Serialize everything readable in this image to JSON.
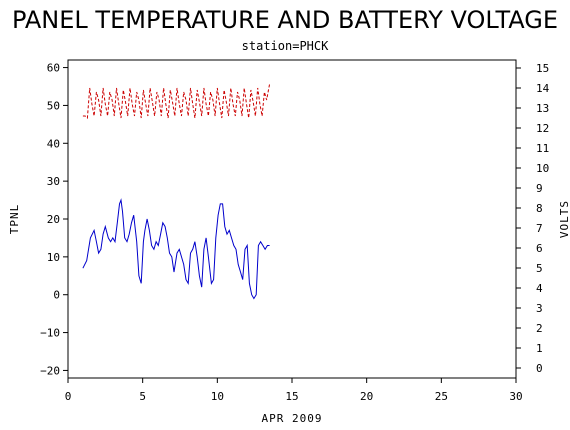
{
  "chart_data": {
    "type": "line",
    "title": "PANEL TEMPERATURE AND BATTERY VOLTAGE",
    "subtitle": "station=PHCK",
    "xlabel": "APR 2009",
    "ylabel_left": "TPNL",
    "ylabel_right": "VOLTS",
    "xlim": [
      0,
      30
    ],
    "ylim_left": [
      -22,
      62
    ],
    "ylim_right": [
      -0.5,
      15.4
    ],
    "x_ticks": [
      0,
      5,
      10,
      15,
      20,
      25,
      30
    ],
    "y_left_ticks": [
      -20,
      -10,
      0,
      10,
      20,
      30,
      40,
      50,
      60
    ],
    "y_right_ticks": [
      0,
      1,
      2,
      3,
      4,
      5,
      6,
      7,
      8,
      9,
      10,
      11,
      12,
      13,
      14,
      15
    ],
    "series": [
      {
        "axis": "left",
        "color": "#0000cc",
        "style": "solid",
        "x": [
          1.0,
          1.25,
          1.5,
          1.75,
          1.9,
          2.05,
          2.2,
          2.35,
          2.5,
          2.7,
          2.85,
          3.0,
          3.15,
          3.3,
          3.45,
          3.55,
          3.65,
          3.8,
          3.95,
          4.1,
          4.25,
          4.4,
          4.6,
          4.75,
          4.9,
          5.05,
          5.15,
          5.3,
          5.45,
          5.6,
          5.75,
          5.9,
          6.05,
          6.2,
          6.35,
          6.5,
          6.65,
          6.8,
          6.95,
          7.1,
          7.3,
          7.45,
          7.6,
          7.75,
          7.9,
          8.05,
          8.2,
          8.35,
          8.5,
          8.65,
          8.8,
          8.95,
          9.1,
          9.25,
          9.4,
          9.6,
          9.75,
          9.9,
          10.05,
          10.2,
          10.35,
          10.5,
          10.65,
          10.8,
          10.95,
          11.1,
          11.25,
          11.4,
          11.55,
          11.7,
          11.85,
          12.0,
          12.15,
          12.3,
          12.45,
          12.6,
          12.75,
          12.9,
          13.05,
          13.2,
          13.35,
          13.5
        ],
        "values": [
          7,
          9,
          15,
          17,
          14,
          11,
          12,
          16,
          18,
          15,
          14,
          15,
          14,
          19,
          24,
          25,
          22,
          15,
          14,
          16,
          19,
          21,
          14,
          5,
          3,
          14,
          17,
          20,
          17,
          13,
          12,
          14,
          13,
          16,
          19,
          18,
          15,
          11,
          10,
          6,
          11,
          12,
          10,
          8,
          4,
          3,
          11,
          12,
          14,
          10,
          5,
          2,
          12,
          15,
          10,
          3,
          4,
          15,
          21,
          24,
          24,
          18,
          16,
          17,
          15,
          13,
          12,
          8,
          6,
          4,
          12,
          13,
          3,
          0,
          -1,
          0,
          13,
          14,
          13,
          12,
          13,
          13
        ]
      },
      {
        "axis": "right",
        "color": "#cc0000",
        "style": "dashed",
        "x": [
          1.0,
          1.15,
          1.3,
          1.45,
          1.6,
          1.75,
          1.9,
          2.05,
          2.2,
          2.35,
          2.5,
          2.65,
          2.8,
          2.95,
          3.1,
          3.25,
          3.4,
          3.55,
          3.7,
          3.85,
          4.0,
          4.15,
          4.3,
          4.45,
          4.6,
          4.75,
          4.9,
          5.05,
          5.2,
          5.35,
          5.5,
          5.65,
          5.8,
          5.95,
          6.1,
          6.25,
          6.4,
          6.55,
          6.7,
          6.85,
          7.0,
          7.15,
          7.3,
          7.45,
          7.6,
          7.75,
          7.9,
          8.05,
          8.2,
          8.35,
          8.5,
          8.65,
          8.8,
          8.95,
          9.1,
          9.25,
          9.4,
          9.55,
          9.7,
          9.85,
          10.0,
          10.15,
          10.3,
          10.45,
          10.6,
          10.75,
          10.9,
          11.05,
          11.2,
          11.35,
          11.5,
          11.65,
          11.8,
          11.95,
          12.1,
          12.25,
          12.4,
          12.55,
          12.7,
          12.85,
          13.0,
          13.15,
          13.3,
          13.5
        ],
        "values": [
          12.6,
          12.6,
          12.5,
          14.0,
          13.2,
          12.6,
          13.8,
          13.4,
          12.6,
          14.0,
          13.2,
          12.6,
          13.8,
          13.4,
          12.6,
          14.0,
          13.2,
          12.5,
          13.9,
          13.3,
          12.6,
          14.0,
          13.2,
          12.6,
          13.8,
          13.4,
          12.5,
          13.9,
          13.2,
          12.6,
          14.0,
          13.3,
          12.6,
          13.8,
          13.4,
          12.6,
          14.0,
          13.2,
          12.5,
          13.9,
          13.3,
          12.6,
          14.0,
          13.2,
          12.6,
          13.8,
          13.4,
          12.6,
          14.0,
          13.2,
          12.5,
          13.9,
          13.3,
          12.6,
          14.0,
          13.2,
          12.6,
          13.8,
          13.4,
          12.6,
          14.0,
          13.2,
          12.5,
          13.9,
          13.3,
          12.6,
          14.0,
          13.2,
          12.6,
          13.8,
          13.4,
          12.6,
          14.0,
          13.2,
          12.5,
          13.9,
          13.3,
          12.6,
          14.0,
          13.2,
          12.6,
          13.8,
          13.4,
          14.2
        ]
      }
    ]
  }
}
